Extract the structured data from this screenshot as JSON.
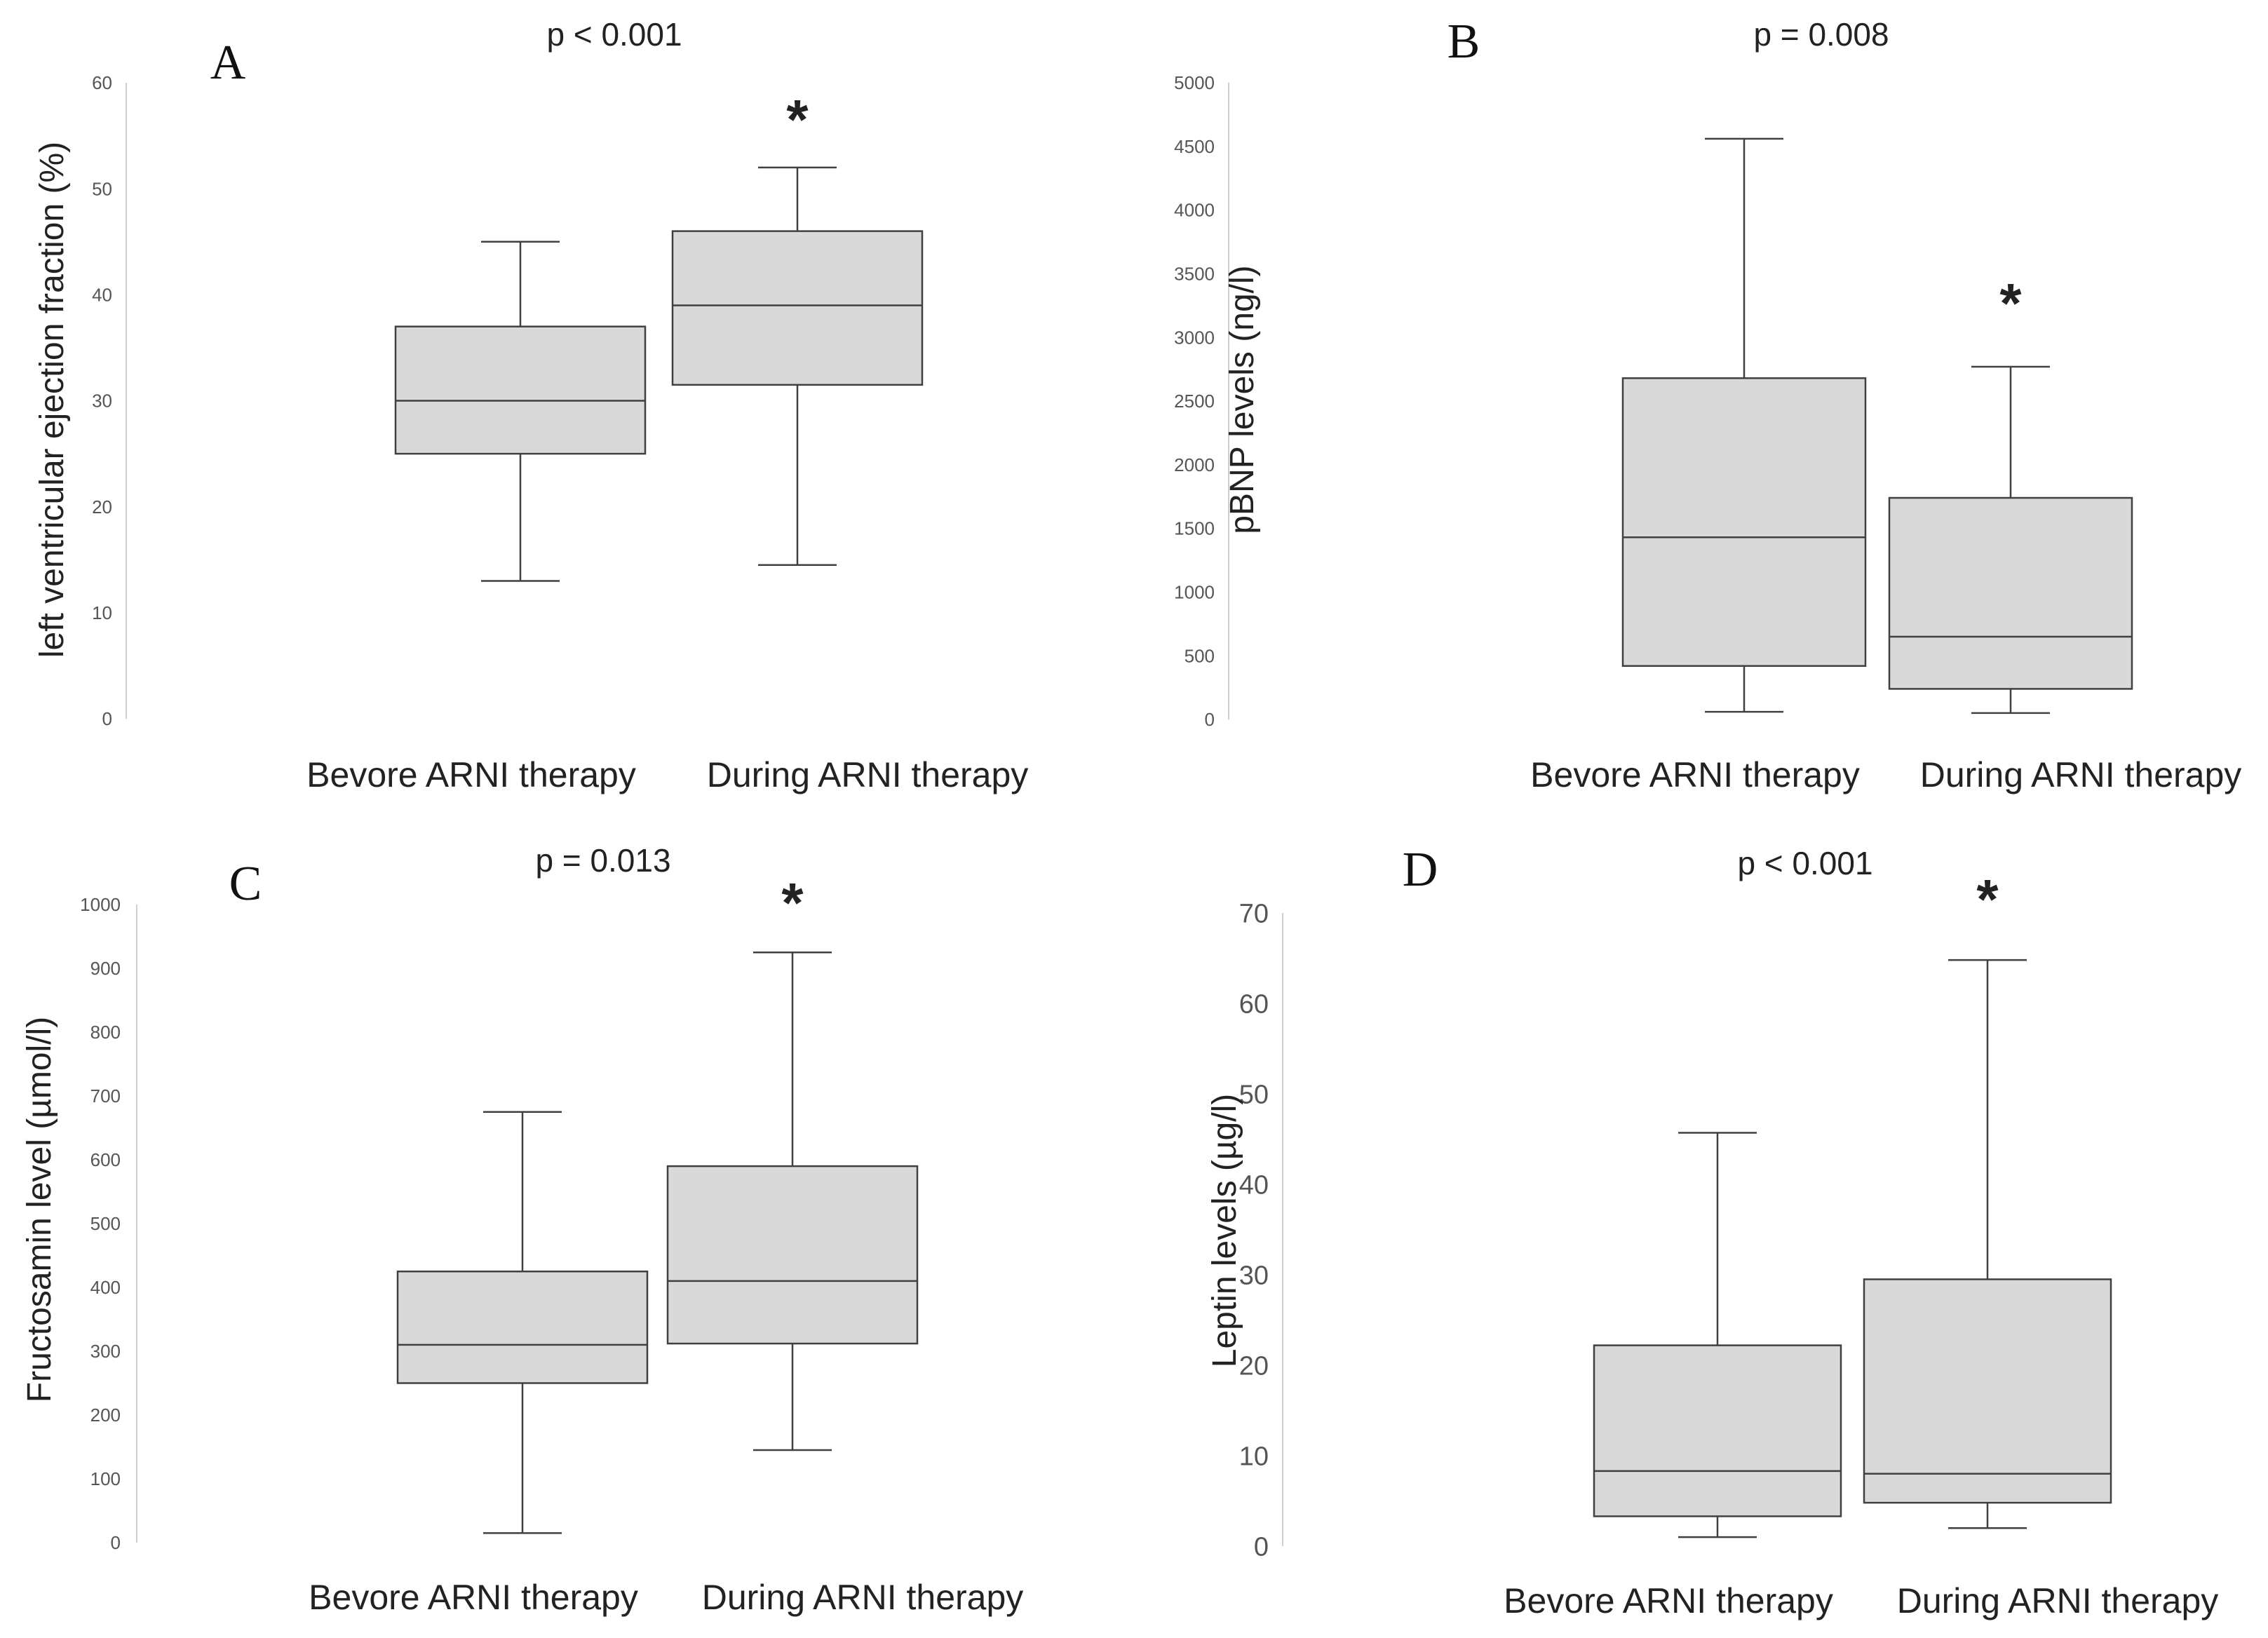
{
  "colors": {
    "box_fill": "#d9d9d9",
    "box_stroke": "#404040",
    "axis": "#bfbfbf",
    "text": "#222222"
  },
  "chart_data": [
    {
      "type": "box",
      "panel": "A",
      "title": "p < 0.001",
      "ylabel": "left ventricular ejection fraction (%)",
      "ylim": [
        0,
        60
      ],
      "yticks": [
        0,
        10,
        20,
        30,
        40,
        50,
        60
      ],
      "categories": [
        "Bevore ARNI therapy",
        "During ARNI therapy"
      ],
      "boxes": [
        {
          "min": 13,
          "q1": 25,
          "median": 30,
          "q3": 37,
          "max": 45
        },
        {
          "min": 14.5,
          "q1": 31.5,
          "median": 39,
          "q3": 46,
          "max": 52
        }
      ],
      "significance_marker": "*",
      "marked_index": 1,
      "tick_font": 26
    },
    {
      "type": "box",
      "panel": "B",
      "title": "p = 0.008",
      "ylabel": "pBNP levels (ng/l)",
      "ylim": [
        0,
        5000
      ],
      "yticks": [
        0,
        500,
        1000,
        1500,
        2000,
        2500,
        3000,
        3500,
        4000,
        4500,
        5000
      ],
      "categories": [
        "Bevore ARNI therapy",
        "During ARNI therapy"
      ],
      "boxes": [
        {
          "min": 60,
          "q1": 420,
          "median": 1430,
          "q3": 2680,
          "max": 4560
        },
        {
          "min": 50,
          "q1": 240,
          "median": 650,
          "q3": 1740,
          "max": 2770
        }
      ],
      "significance_marker": "*",
      "marked_index": 1,
      "tick_font": 26
    },
    {
      "type": "box",
      "panel": "C",
      "title": "p = 0.013",
      "ylabel": "Fructosamin level (µmol/l)",
      "ylim": [
        0,
        1000
      ],
      "yticks": [
        0,
        100,
        200,
        300,
        400,
        500,
        600,
        700,
        800,
        900,
        1000
      ],
      "categories": [
        "Bevore ARNI therapy",
        "During ARNI therapy"
      ],
      "boxes": [
        {
          "min": 15,
          "q1": 250,
          "median": 310,
          "q3": 425,
          "max": 675
        },
        {
          "min": 145,
          "q1": 312,
          "median": 410,
          "q3": 590,
          "max": 925
        }
      ],
      "significance_marker": "*",
      "marked_index": 1,
      "tick_font": 26
    },
    {
      "type": "box",
      "panel": "D",
      "title": "p < 0.001",
      "ylabel": "Leptin levels   (µg/l)",
      "ylim": [
        0,
        70
      ],
      "yticks": [
        0,
        10,
        20,
        30,
        40,
        50,
        60,
        70
      ],
      "categories": [
        "Bevore ARNI therapy",
        "During ARNI therapy"
      ],
      "boxes": [
        {
          "min": 1,
          "q1": 3.3,
          "median": 8.3,
          "q3": 22.2,
          "max": 45.7
        },
        {
          "min": 2,
          "q1": 4.8,
          "median": 8,
          "q3": 29.5,
          "max": 64.8
        }
      ],
      "significance_marker": "*",
      "marked_index": 1,
      "tick_font": 38
    }
  ]
}
